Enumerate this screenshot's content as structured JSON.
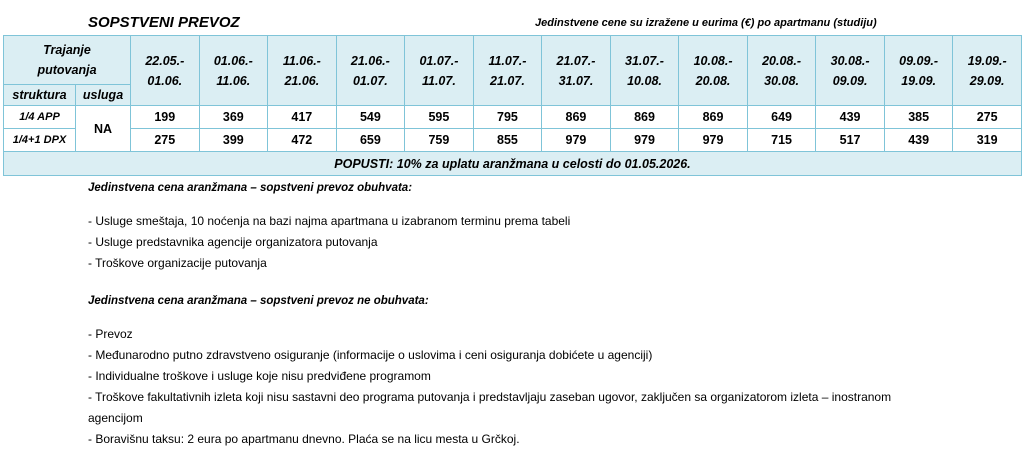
{
  "header": {
    "title": "SOPSTVENI PREVOZ",
    "note": "Jedinstvene cene su izražene u eurima (€) po apartmanu (studiju)"
  },
  "table": {
    "duration_label": [
      "Trajanje",
      "putovanja"
    ],
    "structure_label": "struktura",
    "service_label": "usluga",
    "periods": [
      [
        "22.05.-",
        "01.06."
      ],
      [
        "01.06.-",
        "11.06."
      ],
      [
        "11.06.-",
        "21.06."
      ],
      [
        "21.06.-",
        "01.07."
      ],
      [
        "01.07.-",
        "11.07."
      ],
      [
        "11.07.-",
        "21.07."
      ],
      [
        "21.07.-",
        "31.07."
      ],
      [
        "31.07.-",
        "10.08."
      ],
      [
        "10.08.-",
        "20.08."
      ],
      [
        "20.08.-",
        "30.08."
      ],
      [
        "30.08.-",
        "09.09."
      ],
      [
        "09.09.-",
        "19.09."
      ],
      [
        "19.09.-",
        "29.09."
      ]
    ],
    "service": "NA",
    "rows": [
      {
        "structure": "1/4 APP",
        "prices": [
          199,
          369,
          417,
          549,
          595,
          795,
          869,
          869,
          869,
          649,
          439,
          385,
          275
        ]
      },
      {
        "structure": "1/4+1 DPX",
        "prices": [
          275,
          399,
          472,
          659,
          759,
          855,
          979,
          979,
          979,
          715,
          517,
          439,
          319
        ]
      }
    ],
    "discount": "POPUSTI: 10% za uplatu aranžmana u celosti do 01.05.2026."
  },
  "includes": {
    "heading": "Jedinstvena cena aranžmana – sopstveni prevoz obuhvata:",
    "items": [
      "- Usluge smeštaja, 10 noćenja na bazi najma apartmana u izabranom terminu prema tabeli",
      "- Usluge predstavnika agencije organizatora putovanja",
      "- Troškove organizacije putovanja"
    ]
  },
  "excludes": {
    "heading": "Jedinstvena cena aranžmana – sopstveni prevoz ne obuhvata:",
    "items": [
      "- Prevoz",
      "- Međunarodno putno zdravstveno osiguranje (informacije o uslovima i ceni osiguranja dobićete u agenciji)",
      "- Individualne troškove i usluge koje nisu predviđene programom",
      "- Troškove fakultativnih izleta koji nisu sastavni deo programa putovanja i predstavljaju zaseban ugovor, zaključen sa organizatorom izleta – inostranom agencijom",
      "- Boravišnu taksu: 2 eura po apartmanu dnevno. Plaća se na licu mesta u Grčkoj."
    ]
  }
}
